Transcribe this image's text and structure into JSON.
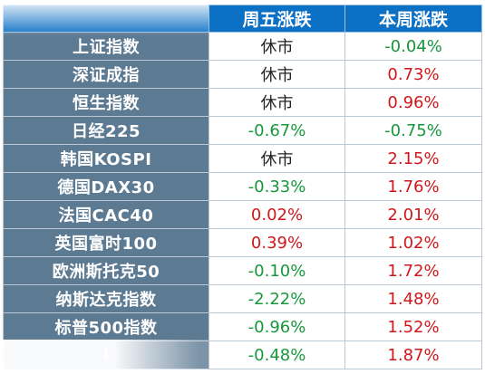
{
  "header": {
    "col1": "",
    "col2": "周五涨跌",
    "col3": "本周涨跌"
  },
  "rows": [
    {
      "name": "上证指数",
      "fri": "休市",
      "week": "-0.04%"
    },
    {
      "name": "深证成指",
      "fri": "休市",
      "week": "0.73%"
    },
    {
      "name": "恒生指数",
      "fri": "休市",
      "week": "0.96%"
    },
    {
      "name": "日经225",
      "fri": "-0.67%",
      "week": "-0.75%"
    },
    {
      "name": "韩国KOSPI",
      "fri": "休市",
      "week": "2.15%"
    },
    {
      "name": "德国DAX30",
      "fri": "-0.33%",
      "week": "1.76%"
    },
    {
      "name": "法国CAC40",
      "fri": "0.02%",
      "week": "2.01%"
    },
    {
      "name": "英国富时100",
      "fri": "0.39%",
      "week": "1.02%"
    },
    {
      "name": "欧洲斯托克50",
      "fri": "-0.10%",
      "week": "1.72%"
    },
    {
      "name": "纳斯达克指数",
      "fri": "-2.22%",
      "week": "1.48%"
    },
    {
      "name": "标普500指数",
      "fri": "-0.96%",
      "week": "1.52%"
    },
    {
      "name": "l",
      "fri": "-0.48%",
      "week": "1.87%"
    }
  ],
  "colors": {
    "header_bg": "#0c70c4",
    "name_bg": "#5d7a93",
    "up": "#d0171b",
    "down": "#17973b",
    "neutral": "#222222"
  }
}
